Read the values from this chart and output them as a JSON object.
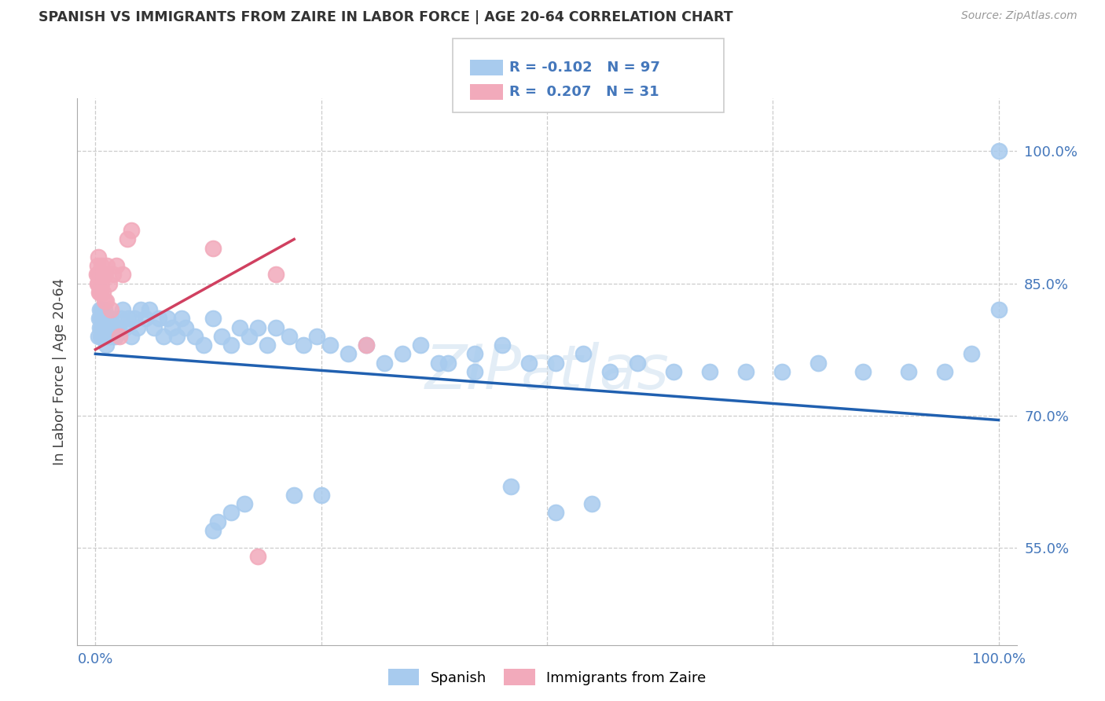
{
  "title": "SPANISH VS IMMIGRANTS FROM ZAIRE IN LABOR FORCE | AGE 20-64 CORRELATION CHART",
  "source": "Source: ZipAtlas.com",
  "ylabel": "In Labor Force | Age 20-64",
  "legend_label1": "Spanish",
  "legend_label2": "Immigrants from Zaire",
  "R1": "-0.102",
  "N1": "97",
  "R2": "0.207",
  "N2": "31",
  "blue_color": "#A8CBEE",
  "pink_color": "#F2AABB",
  "blue_line_color": "#2060B0",
  "pink_line_color": "#D04060",
  "axis_color": "#4477BB",
  "ytick_vals": [
    0.55,
    0.7,
    0.85,
    1.0
  ],
  "ytick_labels": [
    "55.0%",
    "70.0%",
    "85.0%",
    "100.0%"
  ],
  "xlim": [
    0.0,
    1.0
  ],
  "ylim": [
    0.44,
    1.06
  ],
  "blue_line_x": [
    0.0,
    1.0
  ],
  "blue_line_y": [
    0.77,
    0.695
  ],
  "pink_line_x": [
    0.0,
    0.22
  ],
  "pink_line_y": [
    0.775,
    0.9
  ],
  "blue_scatter_x": [
    0.003,
    0.004,
    0.005,
    0.005,
    0.006,
    0.006,
    0.007,
    0.007,
    0.008,
    0.008,
    0.009,
    0.009,
    0.01,
    0.01,
    0.011,
    0.011,
    0.012,
    0.012,
    0.013,
    0.014,
    0.015,
    0.015,
    0.016,
    0.017,
    0.018,
    0.019,
    0.02,
    0.022,
    0.024,
    0.026,
    0.028,
    0.03,
    0.033,
    0.036,
    0.04,
    0.043,
    0.047,
    0.05,
    0.055,
    0.06,
    0.065,
    0.07,
    0.075,
    0.08,
    0.085,
    0.09,
    0.095,
    0.1,
    0.11,
    0.12,
    0.13,
    0.14,
    0.15,
    0.16,
    0.17,
    0.18,
    0.19,
    0.2,
    0.215,
    0.23,
    0.245,
    0.26,
    0.28,
    0.3,
    0.32,
    0.34,
    0.36,
    0.39,
    0.42,
    0.45,
    0.48,
    0.51,
    0.54,
    0.57,
    0.6,
    0.64,
    0.68,
    0.72,
    0.76,
    0.8,
    0.85,
    0.9,
    0.94,
    0.97,
    1.0,
    1.0,
    0.38,
    0.42,
    0.15,
    0.13,
    0.135,
    0.165,
    0.22,
    0.25,
    0.46,
    0.51,
    0.55
  ],
  "blue_scatter_y": [
    0.79,
    0.81,
    0.82,
    0.8,
    0.81,
    0.79,
    0.82,
    0.8,
    0.81,
    0.79,
    0.81,
    0.8,
    0.82,
    0.8,
    0.81,
    0.8,
    0.79,
    0.78,
    0.81,
    0.8,
    0.81,
    0.79,
    0.8,
    0.81,
    0.8,
    0.79,
    0.8,
    0.79,
    0.8,
    0.8,
    0.81,
    0.82,
    0.8,
    0.81,
    0.79,
    0.81,
    0.8,
    0.82,
    0.81,
    0.82,
    0.8,
    0.81,
    0.79,
    0.81,
    0.8,
    0.79,
    0.81,
    0.8,
    0.79,
    0.78,
    0.81,
    0.79,
    0.78,
    0.8,
    0.79,
    0.8,
    0.78,
    0.8,
    0.79,
    0.78,
    0.79,
    0.78,
    0.77,
    0.78,
    0.76,
    0.77,
    0.78,
    0.76,
    0.77,
    0.78,
    0.76,
    0.76,
    0.77,
    0.75,
    0.76,
    0.75,
    0.75,
    0.75,
    0.75,
    0.76,
    0.75,
    0.75,
    0.75,
    0.77,
    1.0,
    0.82,
    0.76,
    0.75,
    0.59,
    0.57,
    0.58,
    0.6,
    0.61,
    0.61,
    0.62,
    0.59,
    0.6
  ],
  "pink_scatter_x": [
    0.001,
    0.002,
    0.002,
    0.003,
    0.003,
    0.003,
    0.004,
    0.004,
    0.005,
    0.005,
    0.006,
    0.007,
    0.007,
    0.008,
    0.009,
    0.01,
    0.011,
    0.012,
    0.013,
    0.015,
    0.017,
    0.02,
    0.023,
    0.027,
    0.03,
    0.035,
    0.04,
    0.13,
    0.18,
    0.2,
    0.3
  ],
  "pink_scatter_y": [
    0.86,
    0.87,
    0.85,
    0.88,
    0.86,
    0.85,
    0.86,
    0.84,
    0.86,
    0.84,
    0.84,
    0.87,
    0.85,
    0.84,
    0.86,
    0.83,
    0.86,
    0.83,
    0.87,
    0.85,
    0.82,
    0.86,
    0.87,
    0.79,
    0.86,
    0.9,
    0.91,
    0.89,
    0.54,
    0.86,
    0.78
  ],
  "watermark_color": "#C8DDEF"
}
